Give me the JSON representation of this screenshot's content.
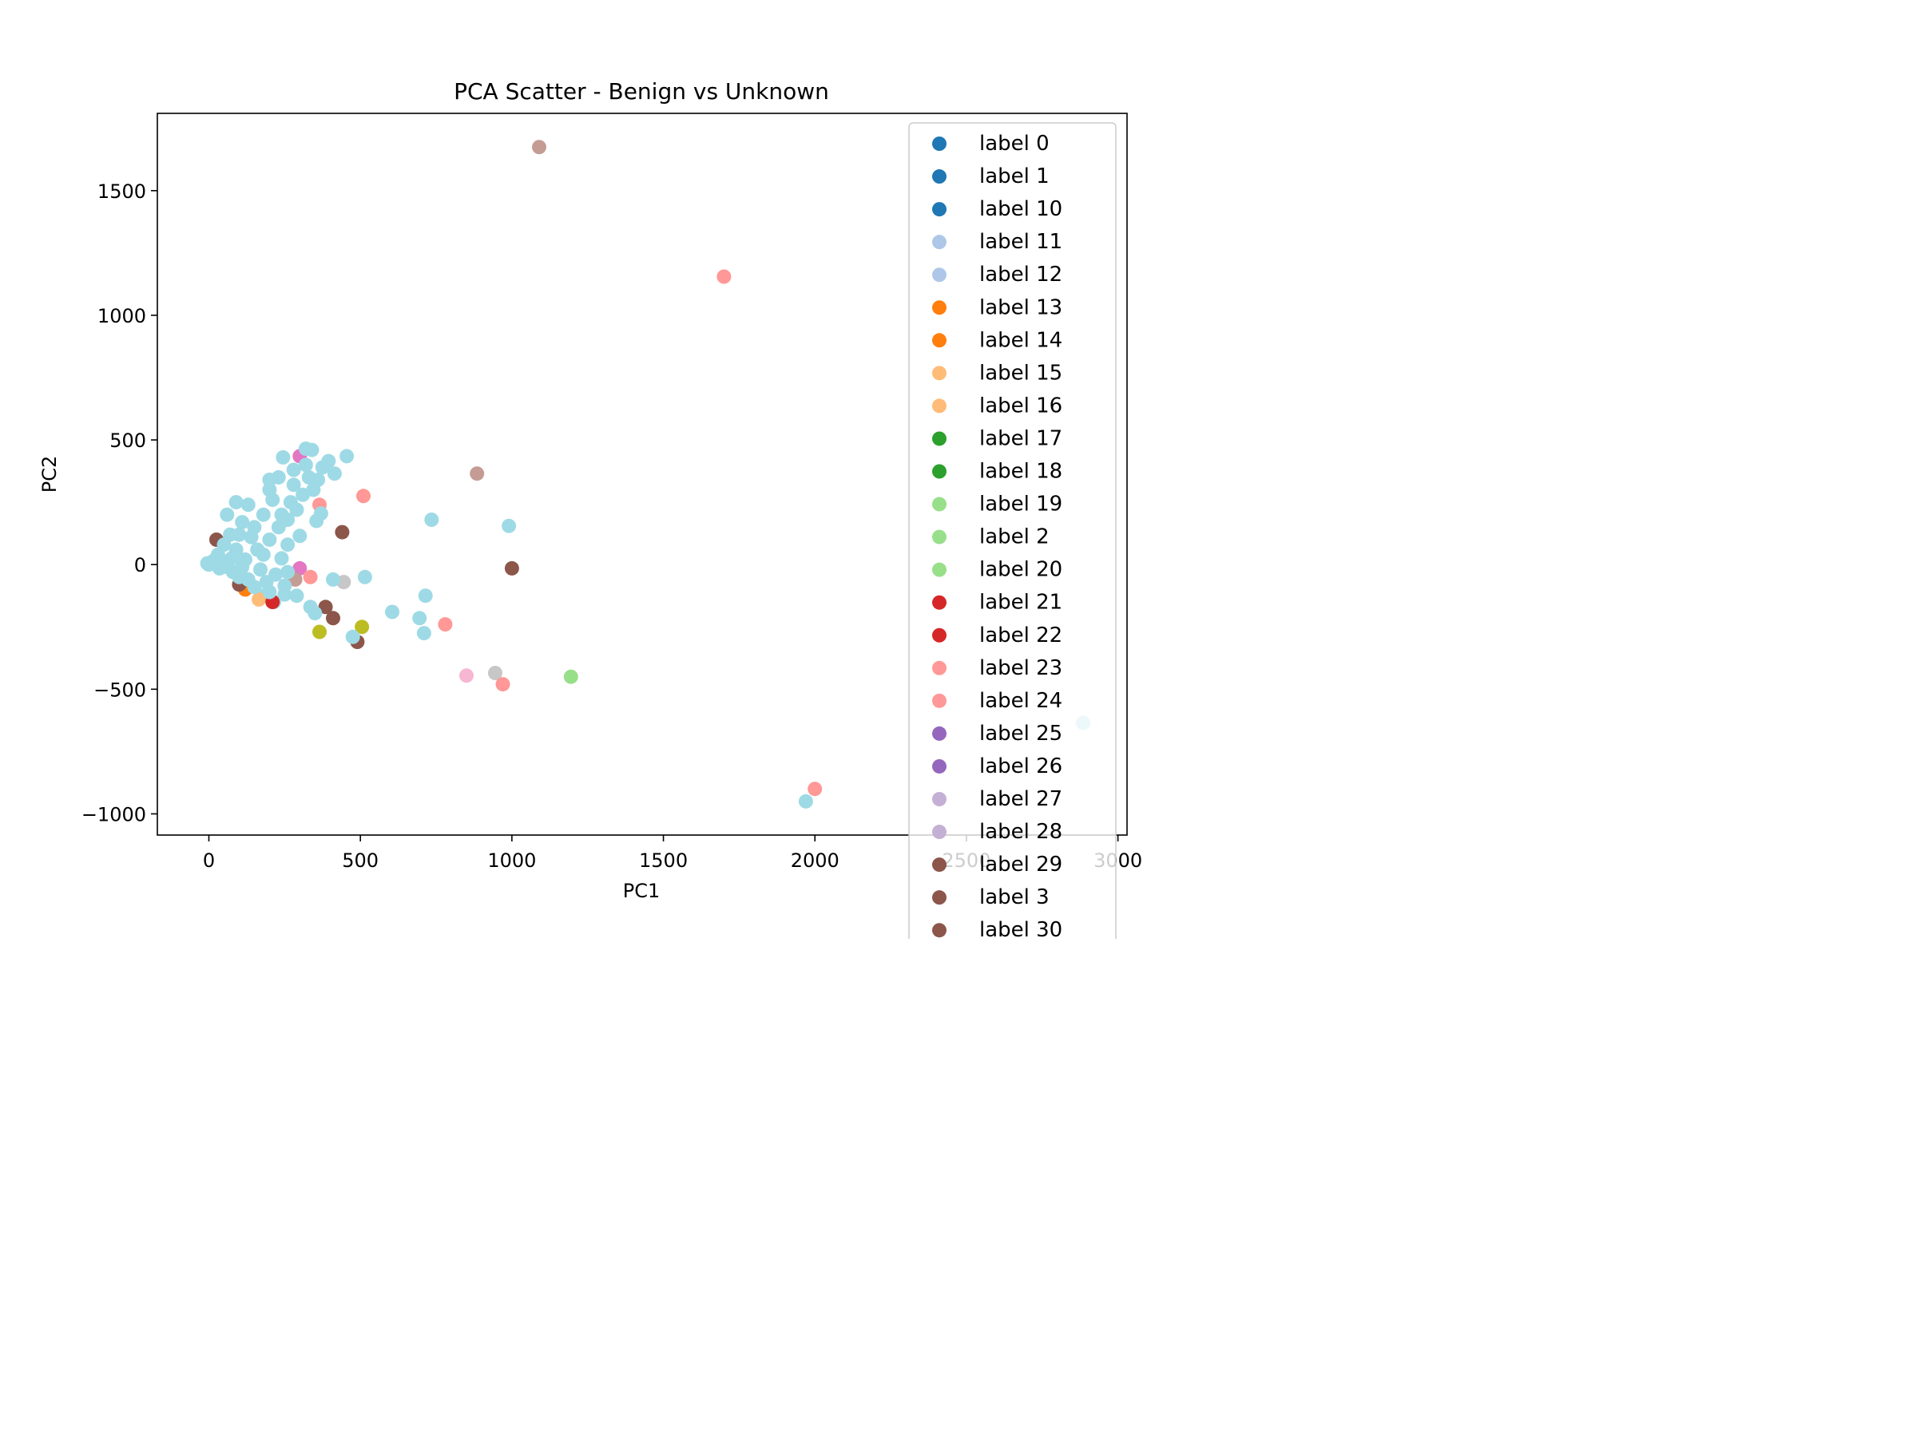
{
  "chart_data": {
    "type": "scatter",
    "title": "PCA Scatter - Benign vs Unknown",
    "xlabel": "PC1",
    "ylabel": "PC2",
    "xlim": [
      -170,
      3030
    ],
    "ylim": [
      -1085,
      1810
    ],
    "xticks": [
      0,
      500,
      1000,
      1500,
      2000,
      2500,
      3000
    ],
    "xtick_labels": [
      "0",
      "500",
      "1000",
      "1500",
      "2000",
      "2500",
      "3000"
    ],
    "yticks": [
      -1000,
      -500,
      0,
      500,
      1000,
      1500
    ],
    "ytick_labels": [
      "−1000",
      "−500",
      "0",
      "500",
      "1000",
      "1500"
    ],
    "grid": false,
    "legend_position": "top-right",
    "legend": [
      {
        "label": "label 0",
        "color": "#1f77b4"
      },
      {
        "label": "label 1",
        "color": "#1f77b4"
      },
      {
        "label": "label 10",
        "color": "#1f77b4"
      },
      {
        "label": "label 11",
        "color": "#aec7e8"
      },
      {
        "label": "label 12",
        "color": "#aec7e8"
      },
      {
        "label": "label 13",
        "color": "#ff7f0e"
      },
      {
        "label": "label 14",
        "color": "#ff7f0e"
      },
      {
        "label": "label 15",
        "color": "#ffbb78"
      },
      {
        "label": "label 16",
        "color": "#ffbb78"
      },
      {
        "label": "label 17",
        "color": "#2ca02c"
      },
      {
        "label": "label 18",
        "color": "#2ca02c"
      },
      {
        "label": "label 19",
        "color": "#98df8a"
      },
      {
        "label": "label 2",
        "color": "#98df8a"
      },
      {
        "label": "label 20",
        "color": "#98df8a"
      },
      {
        "label": "label 21",
        "color": "#d62728"
      },
      {
        "label": "label 22",
        "color": "#d62728"
      },
      {
        "label": "label 23",
        "color": "#ff9896"
      },
      {
        "label": "label 24",
        "color": "#ff9896"
      },
      {
        "label": "label 25",
        "color": "#9467bd"
      },
      {
        "label": "label 26",
        "color": "#9467bd"
      },
      {
        "label": "label 27",
        "color": "#c5b0d5"
      },
      {
        "label": "label 28",
        "color": "#c5b0d5"
      },
      {
        "label": "label 29",
        "color": "#8c564b"
      },
      {
        "label": "label 3",
        "color": "#8c564b"
      },
      {
        "label": "label 30",
        "color": "#8c564b"
      }
    ],
    "points": [
      {
        "x": 1090,
        "y": 1675,
        "color": "#c49c94"
      },
      {
        "x": 1700,
        "y": 1155,
        "color": "#ff9896"
      },
      {
        "x": 885,
        "y": 365,
        "color": "#c49c94"
      },
      {
        "x": 510,
        "y": 275,
        "color": "#ff9896"
      },
      {
        "x": 365,
        "y": 240,
        "color": "#ff9896"
      },
      {
        "x": 735,
        "y": 180,
        "color": "#9edae5"
      },
      {
        "x": 990,
        "y": 155,
        "color": "#9edae5"
      },
      {
        "x": 440,
        "y": 130,
        "color": "#8c564b"
      },
      {
        "x": 1000,
        "y": -15,
        "color": "#8c564b"
      },
      {
        "x": 300,
        "y": -15,
        "color": "#e377c2"
      },
      {
        "x": 300,
        "y": 435,
        "color": "#e377c2"
      },
      {
        "x": 335,
        "y": -50,
        "color": "#ff9896"
      },
      {
        "x": 285,
        "y": -60,
        "color": "#c49c94"
      },
      {
        "x": 445,
        "y": -70,
        "color": "#c7c7c7"
      },
      {
        "x": 515,
        "y": -50,
        "color": "#9edae5"
      },
      {
        "x": 410,
        "y": -60,
        "color": "#9edae5"
      },
      {
        "x": 385,
        "y": -170,
        "color": "#8c564b"
      },
      {
        "x": 410,
        "y": -215,
        "color": "#8c564b"
      },
      {
        "x": 365,
        "y": -270,
        "color": "#bcbd22"
      },
      {
        "x": 505,
        "y": -250,
        "color": "#bcbd22"
      },
      {
        "x": 490,
        "y": -310,
        "color": "#8c564b"
      },
      {
        "x": 475,
        "y": -290,
        "color": "#9edae5"
      },
      {
        "x": 605,
        "y": -190,
        "color": "#9edae5"
      },
      {
        "x": 715,
        "y": -125,
        "color": "#9edae5"
      },
      {
        "x": 695,
        "y": -215,
        "color": "#9edae5"
      },
      {
        "x": 710,
        "y": -275,
        "color": "#9edae5"
      },
      {
        "x": 780,
        "y": -240,
        "color": "#ff9896"
      },
      {
        "x": 850,
        "y": -445,
        "color": "#f7b6d2"
      },
      {
        "x": 945,
        "y": -435,
        "color": "#c7c7c7"
      },
      {
        "x": 970,
        "y": -480,
        "color": "#ff9896"
      },
      {
        "x": 1195,
        "y": -450,
        "color": "#98df8a"
      },
      {
        "x": 1970,
        "y": -950,
        "color": "#9edae5"
      },
      {
        "x": 2000,
        "y": -900,
        "color": "#ff9896"
      },
      {
        "x": 2885,
        "y": -635,
        "color": "#9edae5"
      },
      {
        "x": 455,
        "y": 435,
        "color": "#9edae5"
      },
      {
        "x": 320,
        "y": 465,
        "color": "#9edae5"
      },
      {
        "x": 340,
        "y": 460,
        "color": "#9edae5"
      },
      {
        "x": 245,
        "y": 430,
        "color": "#9edae5"
      },
      {
        "x": 395,
        "y": 415,
        "color": "#9edae5"
      },
      {
        "x": 415,
        "y": 365,
        "color": "#9edae5"
      },
      {
        "x": 375,
        "y": 390,
        "color": "#9edae5"
      },
      {
        "x": 370,
        "y": 205,
        "color": "#9edae5"
      },
      {
        "x": 355,
        "y": 175,
        "color": "#9edae5"
      },
      {
        "x": 300,
        "y": 115,
        "color": "#9edae5"
      },
      {
        "x": 240,
        "y": 25,
        "color": "#9edae5"
      },
      {
        "x": 260,
        "y": -30,
        "color": "#9edae5"
      },
      {
        "x": 250,
        "y": -85,
        "color": "#9edae5"
      },
      {
        "x": 250,
        "y": -120,
        "color": "#9edae5"
      },
      {
        "x": 290,
        "y": -125,
        "color": "#9edae5"
      },
      {
        "x": 335,
        "y": -170,
        "color": "#9edae5"
      },
      {
        "x": 350,
        "y": -195,
        "color": "#9edae5"
      },
      {
        "x": 215,
        "y": -150,
        "color": "#9edae5"
      },
      {
        "x": 175,
        "y": -125,
        "color": "#9edae5"
      },
      {
        "x": 165,
        "y": -140,
        "color": "#ffbb78"
      },
      {
        "x": 210,
        "y": -150,
        "color": "#d62728"
      },
      {
        "x": 120,
        "y": -100,
        "color": "#ff7f0e"
      },
      {
        "x": 100,
        "y": -80,
        "color": "#8c564b"
      },
      {
        "x": 25,
        "y": 100,
        "color": "#8c564b"
      },
      {
        "x": 90,
        "y": 250,
        "color": "#9edae5"
      },
      {
        "x": 130,
        "y": 240,
        "color": "#9edae5"
      },
      {
        "x": 200,
        "y": 300,
        "color": "#9edae5"
      },
      {
        "x": 230,
        "y": 350,
        "color": "#9edae5"
      },
      {
        "x": 200,
        "y": 340,
        "color": "#9edae5"
      },
      {
        "x": 280,
        "y": 320,
        "color": "#9edae5"
      },
      {
        "x": 310,
        "y": 280,
        "color": "#9edae5"
      },
      {
        "x": 330,
        "y": 350,
        "color": "#9edae5"
      },
      {
        "x": 360,
        "y": 340,
        "color": "#9edae5"
      },
      {
        "x": 270,
        "y": 250,
        "color": "#9edae5"
      },
      {
        "x": 240,
        "y": 200,
        "color": "#9edae5"
      },
      {
        "x": 180,
        "y": 200,
        "color": "#9edae5"
      },
      {
        "x": 150,
        "y": 150,
        "color": "#9edae5"
      },
      {
        "x": 110,
        "y": 170,
        "color": "#9edae5"
      },
      {
        "x": 70,
        "y": 120,
        "color": "#9edae5"
      },
      {
        "x": 50,
        "y": 80,
        "color": "#9edae5"
      },
      {
        "x": 30,
        "y": 40,
        "color": "#9edae5"
      },
      {
        "x": 0,
        "y": 0,
        "color": "#9edae5"
      },
      {
        "x": 15,
        "y": 15,
        "color": "#9edae5"
      },
      {
        "x": -5,
        "y": 5,
        "color": "#9edae5"
      },
      {
        "x": 40,
        "y": 10,
        "color": "#9edae5"
      },
      {
        "x": 60,
        "y": -10,
        "color": "#9edae5"
      },
      {
        "x": 80,
        "y": -30,
        "color": "#9edae5"
      },
      {
        "x": 100,
        "y": -50,
        "color": "#9edae5"
      },
      {
        "x": 130,
        "y": -60,
        "color": "#9edae5"
      },
      {
        "x": 150,
        "y": -90,
        "color": "#9edae5"
      },
      {
        "x": 190,
        "y": -70,
        "color": "#9edae5"
      },
      {
        "x": 220,
        "y": -40,
        "color": "#9edae5"
      },
      {
        "x": 170,
        "y": -20,
        "color": "#9edae5"
      },
      {
        "x": 120,
        "y": 20,
        "color": "#9edae5"
      },
      {
        "x": 160,
        "y": 60,
        "color": "#9edae5"
      },
      {
        "x": 200,
        "y": 100,
        "color": "#9edae5"
      },
      {
        "x": 230,
        "y": 150,
        "color": "#9edae5"
      },
      {
        "x": 90,
        "y": 60,
        "color": "#9edae5"
      },
      {
        "x": 140,
        "y": 110,
        "color": "#9edae5"
      },
      {
        "x": 180,
        "y": 40,
        "color": "#9edae5"
      },
      {
        "x": 260,
        "y": 180,
        "color": "#9edae5"
      },
      {
        "x": 290,
        "y": 220,
        "color": "#9edae5"
      },
      {
        "x": 210,
        "y": 260,
        "color": "#9edae5"
      },
      {
        "x": 60,
        "y": 200,
        "color": "#9edae5"
      },
      {
        "x": 100,
        "y": 120,
        "color": "#9edae5"
      },
      {
        "x": 75,
        "y": 25,
        "color": "#9edae5"
      },
      {
        "x": 35,
        "y": -15,
        "color": "#9edae5"
      },
      {
        "x": 110,
        "y": -10,
        "color": "#9edae5"
      },
      {
        "x": 320,
        "y": 400,
        "color": "#9edae5"
      },
      {
        "x": 280,
        "y": 380,
        "color": "#9edae5"
      },
      {
        "x": 345,
        "y": 300,
        "color": "#9edae5"
      },
      {
        "x": 260,
        "y": 80,
        "color": "#9edae5"
      },
      {
        "x": 200,
        "y": -110,
        "color": "#9edae5"
      }
    ]
  }
}
